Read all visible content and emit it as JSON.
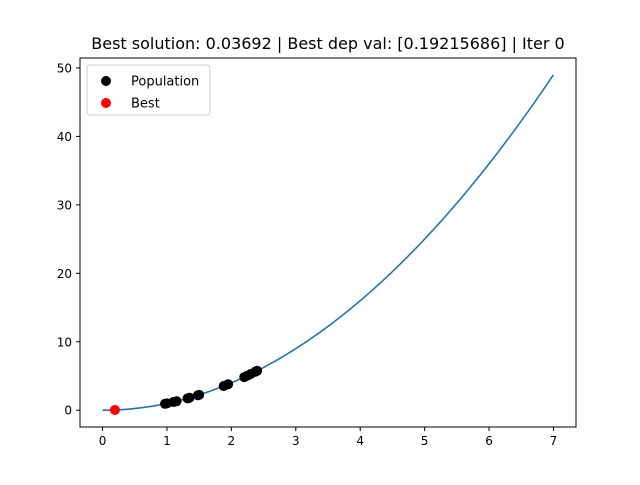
{
  "chart_data": {
    "type": "scatter",
    "title": "Best solution: 0.03692 | Best dep val: [0.19215686] | Iter 0",
    "xlabel": "",
    "ylabel": "",
    "xlim": [
      -0.35,
      7.35
    ],
    "ylim": [
      -2.45,
      51.45
    ],
    "xticks": [
      0,
      1,
      2,
      3,
      4,
      5,
      6,
      7
    ],
    "yticks": [
      0,
      10,
      20,
      30,
      40,
      50
    ],
    "grid": false,
    "legend_position": "top-left",
    "curve": {
      "function": "y = x^2",
      "x_range": [
        0,
        7
      ],
      "color": "#1f77b4"
    },
    "series": [
      {
        "name": "Population",
        "color": "#000000",
        "points": [
          [
            0.97,
            0.94
          ],
          [
            1.0,
            1.0
          ],
          [
            1.1,
            1.21
          ],
          [
            1.15,
            1.32
          ],
          [
            1.32,
            1.74
          ],
          [
            1.35,
            1.82
          ],
          [
            1.48,
            2.19
          ],
          [
            1.5,
            2.25
          ],
          [
            1.88,
            3.53
          ],
          [
            1.95,
            3.8
          ],
          [
            2.2,
            4.84
          ],
          [
            2.25,
            5.06
          ],
          [
            2.3,
            5.29
          ],
          [
            2.37,
            5.62
          ],
          [
            2.4,
            5.76
          ]
        ]
      },
      {
        "name": "Best",
        "color": "#ff0000",
        "points": [
          [
            0.19215686,
            0.03692
          ]
        ]
      }
    ]
  }
}
